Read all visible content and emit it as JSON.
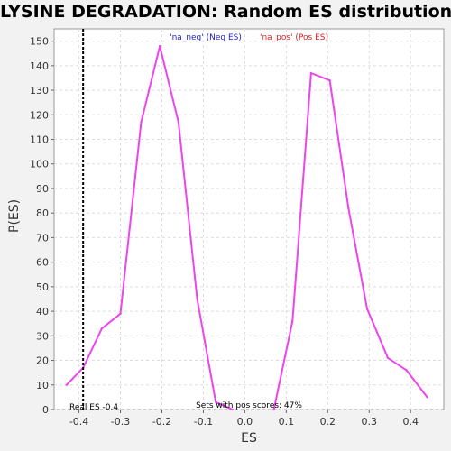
{
  "chart_data": {
    "type": "line",
    "title": "LYSINE DEGRADATION: Random ES distribution",
    "xlabel": "ES",
    "ylabel": "P(ES)",
    "xlim": [
      -0.46,
      0.48
    ],
    "ylim": [
      0,
      155
    ],
    "x_ticks": [
      "-0.4",
      "-0.3",
      "-0.2",
      "-0.1",
      "0.0",
      "0.1",
      "0.2",
      "0.3",
      "0.4"
    ],
    "y_ticks": [
      "0",
      "10",
      "20",
      "30",
      "40",
      "50",
      "60",
      "70",
      "80",
      "90",
      "100",
      "110",
      "120",
      "130",
      "140",
      "150"
    ],
    "grid": true,
    "series": [
      {
        "name": "'na_neg' (Neg ES)",
        "color": "#ee44ee",
        "points": [
          [
            -0.43,
            10
          ],
          [
            -0.39,
            17
          ],
          [
            -0.345,
            33
          ],
          [
            -0.3,
            39
          ],
          [
            -0.25,
            117
          ],
          [
            -0.205,
            148
          ],
          [
            -0.16,
            117
          ],
          [
            -0.115,
            45
          ],
          [
            -0.07,
            3
          ],
          [
            -0.03,
            0
          ]
        ]
      },
      {
        "name": "'na_pos' (Pos ES)",
        "color": "#ee44ee",
        "points": [
          [
            0.07,
            0
          ],
          [
            0.115,
            36
          ],
          [
            0.16,
            137
          ],
          [
            0.205,
            134
          ],
          [
            0.25,
            82
          ],
          [
            0.295,
            41
          ],
          [
            0.345,
            21
          ],
          [
            0.39,
            16
          ],
          [
            0.44,
            5
          ]
        ]
      }
    ],
    "legend": [
      {
        "label": "'na_neg' (Neg ES)",
        "color": "#2222cc"
      },
      {
        "label": "'na_pos' (Pos ES)",
        "color": "#dd2222"
      }
    ],
    "real_es": {
      "value": -0.39,
      "label": "Real ES -0.4"
    },
    "annotation": "Sets with pos scores: 47%"
  }
}
